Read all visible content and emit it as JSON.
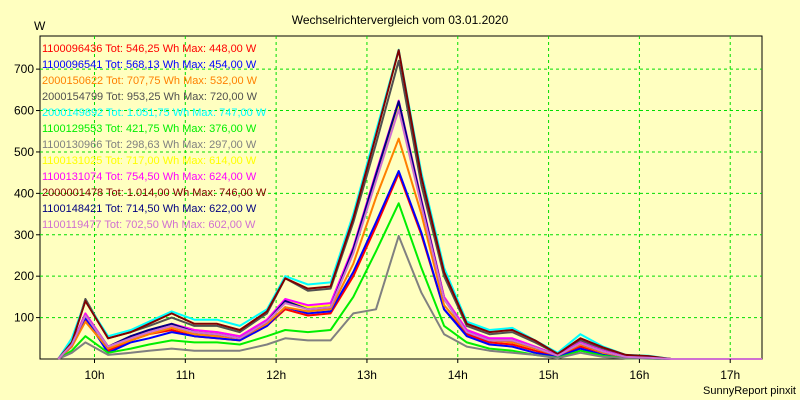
{
  "chart_data": {
    "type": "line",
    "title": "Wechselrichtervergleich vom 03.01.2020",
    "ylabel": "W",
    "xlabel": "",
    "xlim": [
      9.4,
      17.35
    ],
    "ylim": [
      0,
      780
    ],
    "x_ticks": [
      10,
      11,
      12,
      13,
      14,
      15,
      16,
      17
    ],
    "x_tick_labels": [
      "10h",
      "11h",
      "12h",
      "13h",
      "14h",
      "15h",
      "16h",
      "17h"
    ],
    "y_ticks": [
      100,
      200,
      300,
      400,
      500,
      600,
      700
    ],
    "y_tick_labels": [
      "100",
      "200",
      "300",
      "400",
      "500",
      "600",
      "700"
    ],
    "grid": true,
    "legend_placement": "top-left",
    "footer": "SunnyReport pinxit",
    "colors": {
      "background": "#ffffc0",
      "plot_background": "#ffffc0",
      "grid": "#00dd00",
      "axis": "#000000"
    },
    "x": [
      9.6,
      9.75,
      9.9,
      10.15,
      10.4,
      10.6,
      10.85,
      11.1,
      11.35,
      11.6,
      11.9,
      12.1,
      12.35,
      12.6,
      12.85,
      13.1,
      13.35,
      13.6,
      13.85,
      14.1,
      14.35,
      14.6,
      14.85,
      15.1,
      15.35,
      15.6,
      15.85,
      16.1,
      16.35,
      16.6,
      17.35
    ],
    "series": [
      {
        "name": "1100096436",
        "legend": "1100096436 Tot: 546,25 Wh Max: 448,00 W",
        "color": "#ff0000",
        "values": [
          0,
          30,
          95,
          20,
          45,
          60,
          70,
          55,
          50,
          45,
          80,
          120,
          105,
          110,
          200,
          320,
          448,
          300,
          120,
          60,
          40,
          35,
          20,
          5,
          30,
          15,
          5,
          3,
          0,
          0,
          0
        ]
      },
      {
        "name": "1100096541",
        "legend": "1100096541 Tot: 568,13 Wh Max: 454,00 W",
        "color": "#0000ff",
        "values": [
          0,
          30,
          100,
          15,
          40,
          50,
          65,
          55,
          50,
          45,
          80,
          125,
          110,
          115,
          210,
          330,
          454,
          305,
          120,
          55,
          35,
          30,
          15,
          5,
          25,
          10,
          3,
          2,
          0,
          0,
          0
        ]
      },
      {
        "name": "2000150622",
        "legend": "2000150622 Tot: 707,75 Wh Max: 532,00 W",
        "color": "#ff8000",
        "values": [
          0,
          30,
          90,
          25,
          45,
          60,
          75,
          60,
          55,
          50,
          85,
          125,
          115,
          120,
          230,
          390,
          532,
          350,
          130,
          65,
          45,
          40,
          25,
          8,
          35,
          15,
          5,
          3,
          0,
          0,
          0
        ]
      },
      {
        "name": "2000154799",
        "legend": "2000154799 Tot: 953,25 Wh Max: 720,00 W",
        "color": "#505050",
        "values": [
          0,
          40,
          145,
          50,
          65,
          80,
          100,
          80,
          80,
          65,
          110,
          195,
          165,
          170,
          330,
          520,
          720,
          420,
          200,
          80,
          60,
          65,
          40,
          12,
          45,
          25,
          8,
          5,
          0,
          0,
          0
        ]
      },
      {
        "name": "2000149892",
        "legend": "2000149892 Tot: 1.051,75 Wh Max: 747,00 W",
        "color": "#00ffff",
        "values": [
          0,
          50,
          140,
          55,
          70,
          90,
          115,
          95,
          95,
          80,
          120,
          200,
          180,
          185,
          350,
          550,
          747,
          450,
          220,
          90,
          70,
          75,
          45,
          15,
          60,
          30,
          10,
          8,
          0,
          0,
          0
        ]
      },
      {
        "name": "1100129553",
        "legend": "1100129553 Tot: 421,75 Wh Max: 376,00 W",
        "color": "#00ee00",
        "values": [
          0,
          20,
          55,
          15,
          25,
          35,
          45,
          40,
          40,
          35,
          55,
          70,
          65,
          70,
          150,
          260,
          376,
          220,
          80,
          40,
          25,
          20,
          10,
          3,
          20,
          8,
          2,
          1,
          0,
          0,
          0
        ]
      },
      {
        "name": "1100130966",
        "legend": "1100130966 Tot: 298,63 Wh Max: 297,00 W",
        "color": "#808080",
        "values": [
          0,
          15,
          40,
          10,
          15,
          20,
          25,
          20,
          20,
          20,
          35,
          50,
          45,
          45,
          110,
          120,
          297,
          160,
          60,
          30,
          20,
          15,
          10,
          2,
          15,
          5,
          2,
          1,
          0,
          0,
          0
        ]
      },
      {
        "name": "1100131025",
        "legend": "1100131025 Tot: 717,00 Wh Max: 614,00 W",
        "color": "#ffff00",
        "values": [
          0,
          35,
          110,
          30,
          50,
          65,
          85,
          70,
          65,
          55,
          90,
          140,
          125,
          130,
          260,
          440,
          614,
          380,
          150,
          70,
          50,
          45,
          30,
          10,
          40,
          18,
          6,
          4,
          0,
          0,
          0
        ]
      },
      {
        "name": "1100131074",
        "legend": "1100131074 Tot: 754,50 Wh Max: 624,00 W",
        "color": "#ff00ff",
        "values": [
          0,
          35,
          110,
          30,
          55,
          70,
          85,
          70,
          65,
          55,
          95,
          145,
          130,
          135,
          270,
          450,
          624,
          385,
          150,
          70,
          50,
          50,
          30,
          10,
          40,
          20,
          6,
          4,
          0,
          0,
          0
        ]
      },
      {
        "name": "2000001478",
        "legend": "2000001478 Tot: 1.014,00 Wh Max: 746,00 W",
        "color": "#800000",
        "values": [
          0,
          40,
          140,
          50,
          65,
          85,
          110,
          85,
          85,
          70,
          115,
          195,
          170,
          175,
          340,
          540,
          746,
          440,
          210,
          85,
          65,
          70,
          45,
          12,
          50,
          28,
          10,
          7,
          0,
          0,
          0
        ]
      },
      {
        "name": "1100148421",
        "legend": "1100148421 Tot: 714,50 Wh Max: 622,00 W",
        "color": "#000080",
        "values": [
          0,
          35,
          105,
          30,
          55,
          70,
          85,
          65,
          60,
          50,
          90,
          140,
          120,
          125,
          265,
          445,
          622,
          380,
          145,
          65,
          45,
          45,
          28,
          8,
          38,
          18,
          5,
          3,
          0,
          0,
          0
        ]
      },
      {
        "name": "1100119477",
        "legend": "1100119477 Tot: 702,50 Wh Max: 602,00 W",
        "color": "#d070d0",
        "values": [
          0,
          35,
          105,
          30,
          50,
          65,
          80,
          65,
          60,
          50,
          90,
          135,
          120,
          125,
          255,
          430,
          602,
          370,
          145,
          65,
          45,
          45,
          28,
          8,
          38,
          18,
          5,
          3,
          0,
          0,
          0
        ]
      }
    ]
  }
}
